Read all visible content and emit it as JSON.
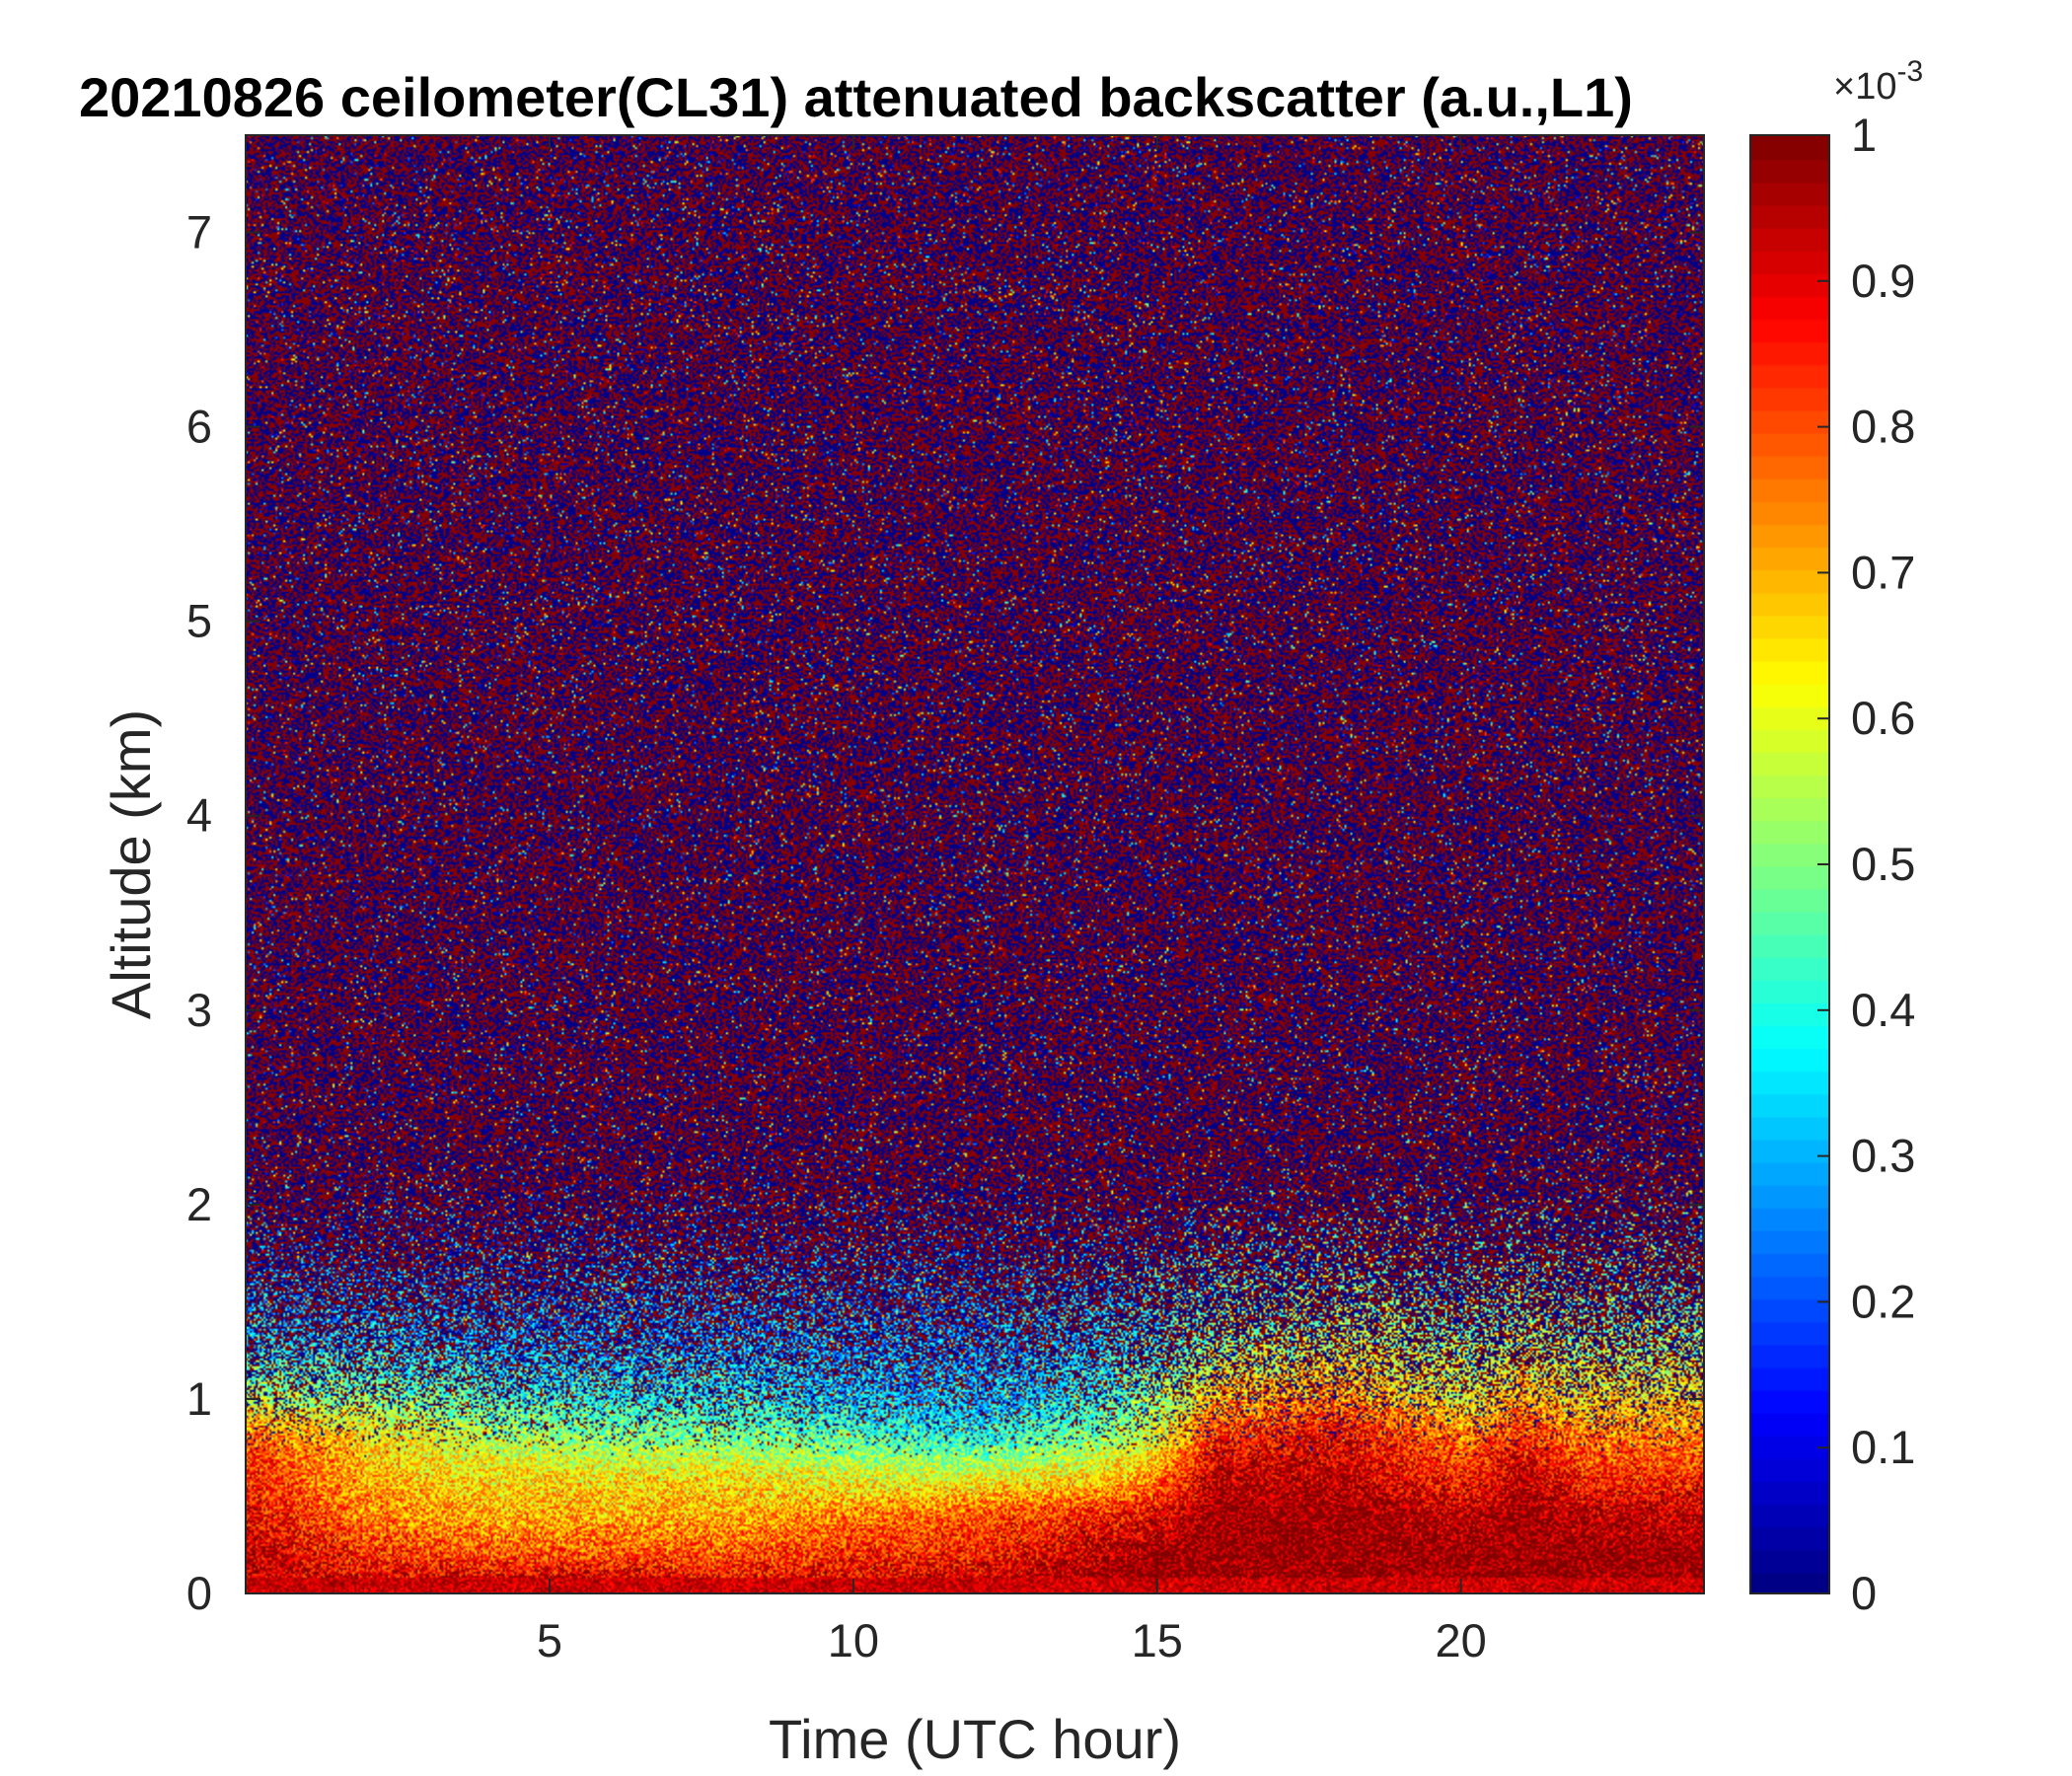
{
  "chart_data": {
    "type": "heatmap",
    "title": "20210826 ceilometer(CL31) attenuated backscatter (a.u.,L1)",
    "xlabel": "Time (UTC hour)",
    "ylabel": "Altitude (km)",
    "xlim": [
      0,
      24
    ],
    "ylim": [
      0,
      7.5
    ],
    "xticks": [
      5,
      10,
      15,
      20
    ],
    "yticks": [
      0,
      1,
      2,
      3,
      4,
      5,
      6,
      7
    ],
    "xtick_labels": [
      "5",
      "10",
      "15",
      "20"
    ],
    "ytick_labels": [
      "0",
      "1",
      "2",
      "3",
      "4",
      "5",
      "6",
      "7"
    ],
    "colorbar": {
      "colormap": "jet",
      "clim": [
        0,
        1
      ],
      "scale_label": "×10",
      "scale_exponent": "-3",
      "ticks": [
        0,
        0.1,
        0.2,
        0.3,
        0.4,
        0.5,
        0.6,
        0.7,
        0.8,
        0.9,
        1
      ],
      "tick_labels": [
        "0",
        "0.1",
        "0.2",
        "0.3",
        "0.4",
        "0.5",
        "0.6",
        "0.7",
        "0.8",
        "0.9",
        "1"
      ]
    },
    "grid": false,
    "approximate_field": {
      "description": "Approximate mean backscatter (x10^-3) by time (h) and altitude (km); above ~2 km the signal is noise alternating between 0 and 1.",
      "times": [
        0,
        2,
        4,
        6,
        8,
        10,
        12,
        14,
        15,
        16,
        18,
        20,
        21,
        22,
        24
      ],
      "altitudes": [
        0.05,
        0.2,
        0.4,
        0.6,
        0.8,
        1.0,
        1.3,
        1.6,
        2.0
      ],
      "values": [
        [
          0.95,
          0.95,
          0.9,
          0.85,
          0.8,
          0.55,
          0.35,
          0.3,
          0.3
        ],
        [
          0.9,
          0.85,
          0.75,
          0.7,
          0.65,
          0.5,
          0.35,
          0.3,
          0.3
        ],
        [
          0.95,
          0.8,
          0.7,
          0.65,
          0.55,
          0.45,
          0.3,
          0.3,
          0.3
        ],
        [
          0.95,
          0.8,
          0.7,
          0.65,
          0.5,
          0.4,
          0.3,
          0.3,
          0.3
        ],
        [
          0.9,
          0.8,
          0.7,
          0.65,
          0.5,
          0.4,
          0.3,
          0.3,
          0.3
        ],
        [
          0.9,
          0.85,
          0.75,
          0.6,
          0.45,
          0.35,
          0.3,
          0.3,
          0.3
        ],
        [
          0.95,
          0.85,
          0.8,
          0.6,
          0.4,
          0.3,
          0.3,
          0.3,
          0.3
        ],
        [
          1.0,
          0.95,
          0.85,
          0.65,
          0.5,
          0.4,
          0.35,
          0.35,
          0.35
        ],
        [
          1.0,
          1.0,
          0.9,
          0.75,
          0.6,
          0.5,
          0.4,
          0.4,
          0.4
        ],
        [
          1.0,
          1.0,
          1.0,
          0.95,
          0.85,
          0.7,
          0.5,
          0.45,
          0.45
        ],
        [
          1.0,
          1.0,
          1.0,
          0.95,
          0.9,
          0.75,
          0.55,
          0.5,
          0.45
        ],
        [
          1.0,
          1.0,
          0.95,
          0.85,
          0.75,
          0.6,
          0.5,
          0.45,
          0.45
        ],
        [
          1.0,
          1.0,
          1.0,
          0.95,
          0.85,
          0.7,
          0.55,
          0.5,
          0.45
        ],
        [
          1.0,
          1.0,
          0.95,
          0.85,
          0.75,
          0.65,
          0.5,
          0.45,
          0.45
        ],
        [
          1.0,
          1.0,
          0.95,
          0.85,
          0.75,
          0.65,
          0.5,
          0.45,
          0.45
        ]
      ]
    }
  }
}
